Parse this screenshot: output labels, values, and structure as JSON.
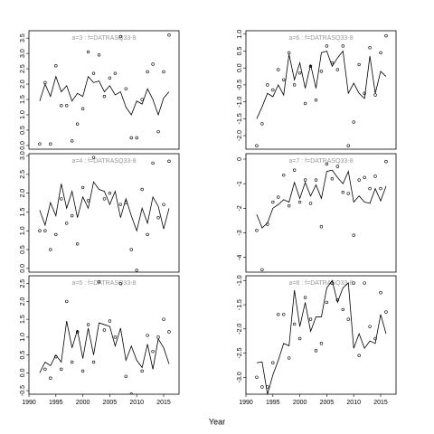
{
  "xlabel": "Year",
  "chart_data": [
    {
      "type": "line",
      "title": "a=3 : f=DATRASQ33-8",
      "x": [
        1992,
        1993,
        1994,
        1995,
        1996,
        1997,
        1998,
        1999,
        2000,
        2001,
        2002,
        2003,
        2004,
        2005,
        2006,
        2007,
        2008,
        2009,
        2010,
        2011,
        2012,
        2013,
        2014,
        2015,
        2016
      ],
      "xlim": [
        1990,
        2017.85
      ],
      "ylim": [
        -0.12,
        3.74
      ],
      "yticks": [
        {
          "value": 0,
          "label": "0.0"
        },
        {
          "value": 0.5,
          "label": "0.5"
        },
        {
          "value": 1,
          "label": "1.0"
        },
        {
          "value": 1.5,
          "label": "1.5"
        },
        {
          "value": 2,
          "label": "2.0"
        },
        {
          "value": 2.5,
          "label": "2.5"
        },
        {
          "value": 3,
          "label": "3.0"
        },
        {
          "value": 3.5,
          "label": "3.5"
        }
      ],
      "series": [
        {
          "marker": "circle",
          "color": "#000000",
          "values": [
            0.05,
            2.05,
            0.05,
            2.6,
            1.3,
            1.3,
            0.15,
            0.7,
            1.2,
            3.05,
            2.35,
            2.95,
            1.6,
            2.2,
            2.35,
            3.55,
            1.85,
            0.25,
            0.25,
            1.5,
            2.4,
            2.65,
            0.45,
            2.4,
            3.6
          ]
        },
        {
          "marker": "none",
          "color": "#000000",
          "values": [
            1.45,
            2.0,
            1.6,
            2.25,
            1.75,
            1.95,
            1.45,
            1.7,
            1.6,
            2.25,
            2.05,
            2.1,
            1.75,
            1.95,
            1.65,
            1.75,
            1.25,
            1.0,
            1.45,
            1.35,
            1.85,
            1.5,
            1.0,
            1.55,
            1.75
          ]
        }
      ]
    },
    {
      "type": "line",
      "title": "a=4 : f=DATRASQ33-8",
      "x": [
        1992,
        1993,
        1994,
        1995,
        1996,
        1997,
        1998,
        1999,
        2000,
        2001,
        2002,
        2003,
        2004,
        2005,
        2006,
        2007,
        2008,
        2009,
        2010,
        2011,
        2012,
        2013,
        2014,
        2015,
        2016
      ],
      "xlim": [
        1990,
        2017.85
      ],
      "ylim": [
        -0.1,
        3.05
      ],
      "yticks": [
        {
          "value": 0,
          "label": "0.0"
        },
        {
          "value": 0.5,
          "label": "0.5"
        },
        {
          "value": 1,
          "label": "1.0"
        },
        {
          "value": 1.5,
          "label": "1.5"
        },
        {
          "value": 2,
          "label": "2.0"
        },
        {
          "value": 2.5,
          "label": "2.5"
        },
        {
          "value": 3,
          "label": "3.0"
        }
      ],
      "series": [
        {
          "marker": "circle",
          "color": "#000000",
          "values": [
            1.0,
            1.0,
            0.5,
            0.9,
            1.85,
            1.2,
            1.4,
            0.65,
            2.15,
            1.8,
            2.95,
            3.2,
            1.85,
            2.0,
            3.3,
            1.7,
            1.75,
            0.5,
            -0.05,
            2.1,
            0.9,
            2.8,
            1.35,
            1.7,
            2.85
          ]
        },
        {
          "marker": "none",
          "color": "#000000",
          "values": [
            1.55,
            1.15,
            1.75,
            1.4,
            2.25,
            1.6,
            2.05,
            1.35,
            1.9,
            1.6,
            2.3,
            2.1,
            2.05,
            1.7,
            2.05,
            1.35,
            1.85,
            1.4,
            1.0,
            1.6,
            1.2,
            1.9,
            1.65,
            1.05,
            1.6
          ]
        }
      ]
    },
    {
      "type": "line",
      "title": "a=5 : f=DATRASQ33-8",
      "x": [
        1992,
        1993,
        1994,
        1995,
        1996,
        1997,
        1998,
        1999,
        2000,
        2001,
        2002,
        2003,
        2004,
        2005,
        2006,
        2007,
        2008,
        2009,
        2010,
        2011,
        2012,
        2013,
        2014,
        2015,
        2016
      ],
      "xlim": [
        1990,
        2017.85
      ],
      "ylim": [
        -0.6,
        2.72
      ],
      "xticks": [
        1990,
        1995,
        2000,
        2005,
        2010,
        2015
      ],
      "yticks": [
        {
          "value": -0.5,
          "label": "-0.5"
        },
        {
          "value": 0,
          "label": "0.0"
        },
        {
          "value": 0.5,
          "label": "0.5"
        },
        {
          "value": 1,
          "label": "1.0"
        },
        {
          "value": 1.5,
          "label": "1.5"
        },
        {
          "value": 2,
          "label": "2.0"
        },
        {
          "value": 2.5,
          "label": "2.5"
        }
      ],
      "series": [
        {
          "marker": "circle",
          "color": "#000000",
          "values": [
            -0.65,
            0.1,
            -0.15,
            0.45,
            0.1,
            2.0,
            0.3,
            1.15,
            0.05,
            1.35,
            0.3,
            2.55,
            1.2,
            1.45,
            1.0,
            2.5,
            -0.1,
            -0.6,
            -0.75,
            0.05,
            1.05,
            0.6,
            1.0,
            1.5,
            1.15
          ]
        },
        {
          "marker": "none",
          "color": "#000000",
          "values": [
            0.0,
            0.3,
            0.2,
            0.5,
            0.3,
            1.45,
            0.7,
            1.2,
            0.4,
            1.25,
            0.5,
            1.4,
            1.35,
            1.3,
            0.75,
            1.25,
            0.35,
            0.75,
            0.35,
            0.15,
            0.8,
            0.1,
            0.95,
            0.7,
            0.25
          ]
        }
      ]
    },
    {
      "type": "line",
      "title": "a=6 : f=DATRASQ33-8",
      "x": [
        1992,
        1993,
        1994,
        1995,
        1996,
        1997,
        1998,
        1999,
        2000,
        2001,
        2002,
        2003,
        2004,
        2005,
        2006,
        2007,
        2008,
        2009,
        2010,
        2011,
        2012,
        2013,
        2014,
        2015,
        2016
      ],
      "xlim": [
        1990,
        2017.85
      ],
      "ylim": [
        -2.4,
        1.1
      ],
      "yticks": [
        {
          "value": -2,
          "label": "-2.0"
        },
        {
          "value": -1.5,
          "label": "-1.5"
        },
        {
          "value": -1,
          "label": "-1.0"
        },
        {
          "value": -0.5,
          "label": "-0.5"
        },
        {
          "value": 0,
          "label": "0.0"
        },
        {
          "value": 0.5,
          "label": "0.5"
        },
        {
          "value": 1,
          "label": "1.0"
        }
      ],
      "series": [
        {
          "marker": "circle",
          "color": "#000000",
          "values": [
            -2.3,
            -1.65,
            -0.5,
            -0.65,
            -0.05,
            -0.35,
            0.45,
            -0.5,
            -0.15,
            -1.05,
            0.05,
            -0.95,
            -0.1,
            0.65,
            0.15,
            -0.05,
            0.65,
            -2.3,
            -1.6,
            0.1,
            -0.75,
            0.6,
            -0.8,
            0.45,
            0.95
          ]
        },
        {
          "marker": "none",
          "color": "#000000",
          "values": [
            -1.5,
            -1.15,
            -0.75,
            -0.85,
            -0.5,
            -0.8,
            0.4,
            -0.35,
            0.15,
            -0.6,
            0.1,
            -0.6,
            0.45,
            0.5,
            0.05,
            0.3,
            0.5,
            -0.75,
            -0.45,
            -0.75,
            -0.9,
            0.35,
            -0.75,
            -0.1,
            -0.25
          ]
        }
      ]
    },
    {
      "type": "line",
      "title": "a=7 : f=DATRASQ33-8",
      "x": [
        1992,
        1993,
        1994,
        1995,
        1996,
        1997,
        1998,
        1999,
        2000,
        2001,
        2002,
        2003,
        2004,
        2005,
        2006,
        2007,
        2008,
        2009,
        2010,
        2011,
        2012,
        2013,
        2014,
        2015,
        2016
      ],
      "xlim": [
        1990,
        2017.85
      ],
      "ylim": [
        -4.6,
        0.22
      ],
      "yticks": [
        -4,
        -3,
        -2,
        -1,
        0
      ],
      "series": [
        {
          "marker": "circle",
          "color": "#000000",
          "values": [
            -2.9,
            -4.5,
            -2.65,
            -1.75,
            -1.55,
            -0.65,
            -1.9,
            -0.45,
            -1.75,
            -0.85,
            -1.8,
            -0.85,
            -2.75,
            -0.2,
            -0.8,
            -0.3,
            -1.35,
            -1.4,
            -3.1,
            -0.85,
            -0.75,
            -1.2,
            -0.7,
            -1.2,
            -0.1
          ]
        },
        {
          "marker": "none",
          "color": "#000000",
          "values": [
            -2.25,
            -2.8,
            -2.6,
            -2.0,
            -1.85,
            -1.65,
            -1.75,
            -0.95,
            -1.6,
            -0.95,
            -1.5,
            -1.05,
            -1.6,
            -0.5,
            -0.45,
            -0.75,
            -1.0,
            -0.5,
            -1.75,
            -1.5,
            -1.75,
            -1.8,
            -1.2,
            -1.7,
            -1.1
          ]
        }
      ]
    },
    {
      "type": "line",
      "title": "a=8 : f=DATRASQ33-8",
      "x": [
        1992,
        1993,
        1994,
        1995,
        1996,
        1997,
        1998,
        1999,
        2000,
        2001,
        2002,
        2003,
        2004,
        2005,
        2006,
        2007,
        2008,
        2009,
        2010,
        2011,
        2012,
        2013,
        2014,
        2015,
        2016
      ],
      "xlim": [
        1990,
        2017.85
      ],
      "ylim": [
        -3.35,
        -0.9
      ],
      "xticks": [
        1990,
        1995,
        2000,
        2005,
        2010,
        2015
      ],
      "yticks": [
        {
          "value": -3,
          "label": "-3.0"
        },
        {
          "value": -2.5,
          "label": "-2.5"
        },
        {
          "value": -2,
          "label": "-2.0"
        },
        {
          "value": -1.5,
          "label": "-1.5"
        },
        {
          "value": -1,
          "label": "-1.0"
        }
      ],
      "series": [
        {
          "marker": "circle",
          "color": "#000000",
          "values": [
            -3.0,
            -3.2,
            -3.2,
            -2.7,
            -1.7,
            -1.7,
            -2.6,
            -1.9,
            -2.2,
            -1.35,
            -1.8,
            -2.45,
            -2.3,
            -1.45,
            -1.05,
            -1.4,
            -1.6,
            -1.8,
            -1.05,
            -2.55,
            -1.05,
            -1.95,
            -2.2,
            -1.25,
            -1.65
          ]
        },
        {
          "marker": "none",
          "color": "#000000",
          "values": [
            -2.7,
            -2.68,
            -3.35,
            -2.95,
            -2.65,
            -2.3,
            -2.35,
            -1.2,
            -1.95,
            -1.45,
            -2.05,
            -1.75,
            -1.75,
            -1.15,
            -1.0,
            -1.45,
            -1.15,
            -1.05,
            -2.4,
            -2.1,
            -2.4,
            -2.25,
            -2.3,
            -1.7,
            -2.1
          ]
        }
      ]
    }
  ]
}
